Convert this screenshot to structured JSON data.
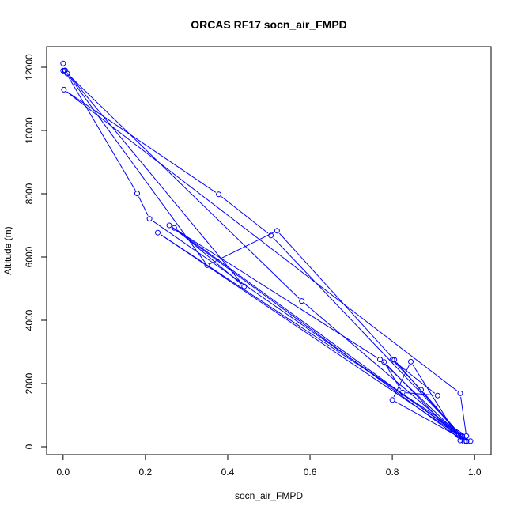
{
  "chart_data": {
    "type": "line",
    "title": "ORCAS RF17 socn_air_FMPD",
    "xlabel": "socn_air_FMPD",
    "ylabel": "Altitude (m)",
    "xlim": [
      -0.04,
      1.04
    ],
    "ylim": [
      -250,
      12650
    ],
    "x_ticks": [
      0.0,
      0.2,
      0.4,
      0.6,
      0.8,
      1.0
    ],
    "x_tick_labels": [
      "0.0",
      "0.2",
      "0.4",
      "0.6",
      "0.8",
      "1.0"
    ],
    "y_ticks": [
      0,
      2000,
      4000,
      6000,
      8000,
      10000,
      12000
    ],
    "y_tick_labels": [
      "0",
      "2000",
      "4000",
      "6000",
      "8000",
      "10000",
      "12000"
    ],
    "grid": false,
    "series_color": "#0000ff",
    "series": [
      {
        "points": [
          [
            0.0,
            12120
          ],
          [
            0.0,
            11890
          ],
          [
            0.004,
            11890
          ],
          [
            0.18,
            8010
          ],
          [
            0.21,
            7210
          ],
          [
            0.97,
            340
          ],
          [
            0.99,
            180
          ],
          [
            0.965,
            330
          ],
          [
            0.23,
            6770
          ],
          [
            0.98,
            340
          ],
          [
            0.965,
            1690
          ],
          [
            0.002,
            11290
          ],
          [
            0.378,
            7980
          ],
          [
            0.505,
            6680
          ],
          [
            0.97,
            330
          ],
          [
            0.975,
            160
          ],
          [
            0.258,
            7000
          ],
          [
            0.77,
            2760
          ],
          [
            0.98,
            160
          ],
          [
            0.87,
            1800
          ],
          [
            0.8,
            2750
          ],
          [
            0.91,
            1620
          ],
          [
            0.825,
            1720
          ],
          [
            0.78,
            2680
          ],
          [
            0.965,
            200
          ],
          [
            0.845,
            2690
          ],
          [
            0.8,
            1480
          ],
          [
            0.98,
            180
          ],
          [
            0.58,
            4610
          ],
          [
            0.01,
            11800
          ],
          [
            0.35,
            5740
          ],
          [
            0.52,
            6830
          ],
          [
            0.805,
            2750
          ],
          [
            0.965,
            340
          ],
          [
            0.27,
            6920
          ],
          [
            0.44,
            5070
          ],
          [
            0.005,
            11900
          ]
        ]
      }
    ]
  }
}
